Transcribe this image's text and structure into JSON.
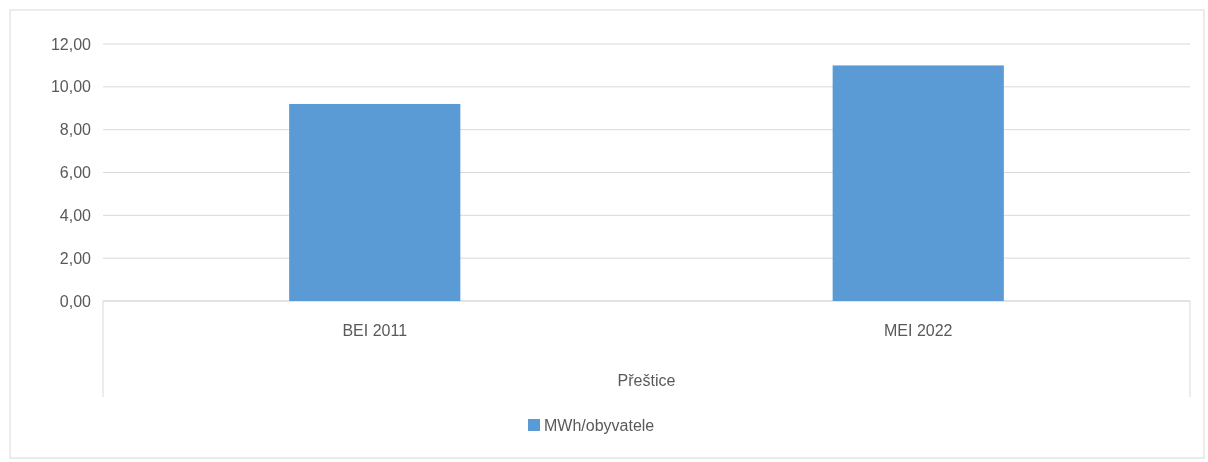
{
  "chart_data": {
    "type": "bar",
    "categories": [
      "BEI 2011",
      "MEI 2022"
    ],
    "xlabel": "Přeštice",
    "series": [
      {
        "name": "MWh/obyvatele",
        "color": "#5b9bd5",
        "values": [
          9.2,
          11.0
        ]
      }
    ],
    "ylim": [
      0,
      12
    ],
    "yticks": [
      {
        "value": 0,
        "label": "0,00"
      },
      {
        "value": 2,
        "label": "2,00"
      },
      {
        "value": 4,
        "label": "4,00"
      },
      {
        "value": 6,
        "label": "6,00"
      },
      {
        "value": 8,
        "label": "8,00"
      },
      {
        "value": 10,
        "label": "10,00"
      },
      {
        "value": 12,
        "label": "12,00"
      }
    ],
    "grid": "y",
    "legend": "bottom"
  }
}
